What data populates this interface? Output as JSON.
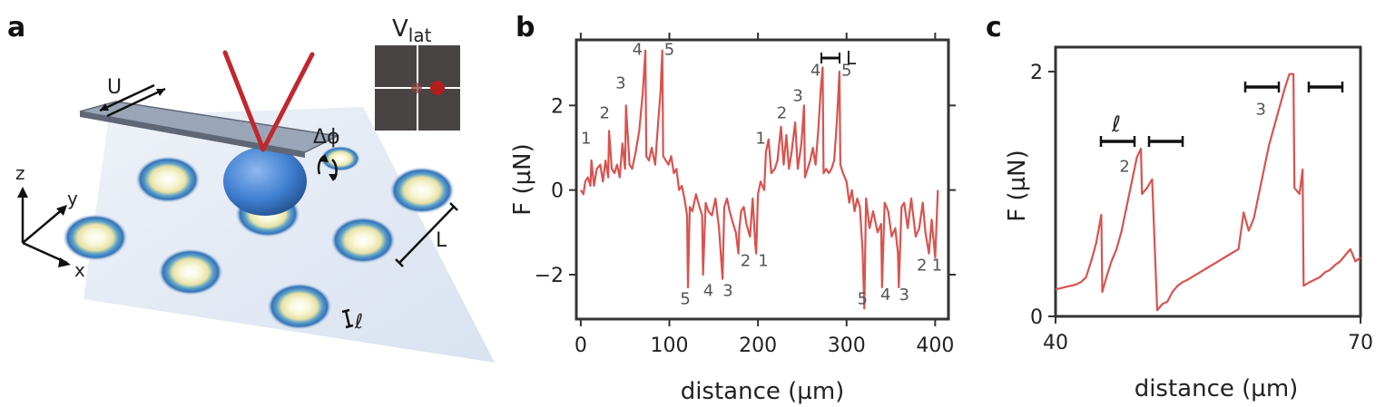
{
  "panels": {
    "a": "a",
    "b": "b",
    "c": "c"
  },
  "schematic": {
    "title_main": "V",
    "title_sub": "lat",
    "labels": {
      "U": "U",
      "dphi": "Δϕ",
      "L": "L",
      "ell": "ℓ",
      "z": "z",
      "y": "y",
      "x": "x"
    },
    "colors": {
      "tip": "#c0282d",
      "sphere": "#3f7fd0",
      "cantilever": "#8e9aae",
      "substrate": "#dfe7f2",
      "vlat_bg": "#484444",
      "vlat_dot": "#b21e1e"
    }
  },
  "chart_data": [
    {
      "panel": "b",
      "type": "line",
      "xlabel": "distance (µm)",
      "ylabel": "F (µN)",
      "xlim": [
        -5,
        415
      ],
      "ylim": [
        -3.05,
        3.55
      ],
      "xticks": [
        0,
        100,
        200,
        300,
        400
      ],
      "xtick_labels": [
        "0",
        "100",
        "200",
        "300",
        "400"
      ],
      "yticks": [
        -2,
        0,
        2
      ],
      "ytick_labels": [
        "−2",
        "0",
        "2"
      ],
      "annotation_L": "L",
      "series": [
        {
          "name": "F",
          "color": "#d9534f",
          "x": [
            0,
            3,
            5,
            8,
            11,
            12,
            15,
            18,
            22,
            25,
            28,
            31,
            32,
            35,
            38,
            41,
            44,
            47,
            50,
            51,
            55,
            58,
            62,
            66,
            70,
            73,
            74,
            77,
            80,
            84,
            87,
            90,
            92,
            93,
            96,
            99,
            102,
            105,
            108,
            111,
            114,
            117,
            120,
            121,
            123,
            126,
            130,
            134,
            137,
            138,
            141,
            144,
            148,
            152,
            156,
            159,
            160,
            162,
            165,
            168,
            172,
            175,
            178,
            179,
            181,
            184,
            187,
            191,
            194,
            197,
            198,
            200,
            203,
            207,
            209,
            212,
            215,
            219,
            222,
            226,
            229,
            232,
            235,
            238,
            242,
            245,
            249,
            252,
            253,
            256,
            259,
            262,
            265,
            268,
            271,
            273,
            274,
            277,
            280,
            283,
            286,
            289,
            292,
            293,
            296,
            300,
            303,
            306,
            309,
            312,
            315,
            318,
            320,
            322,
            326,
            330,
            335,
            339,
            340,
            343,
            347,
            351,
            355,
            358,
            359,
            362,
            365,
            369,
            373,
            378,
            382,
            386,
            389,
            393,
            396,
            400,
            403
          ],
          "y": [
            0.0,
            -0.1,
            0.2,
            0.3,
            0.1,
            0.7,
            0.1,
            0.5,
            0.6,
            0.2,
            0.7,
            0.3,
            1.4,
            0.5,
            0.4,
            0.6,
            0.3,
            1.1,
            0.5,
            2.0,
            0.6,
            0.5,
            0.9,
            1.4,
            2.3,
            3.3,
            0.8,
            0.7,
            1.0,
            0.6,
            1.5,
            2.3,
            3.3,
            0.8,
            0.7,
            0.6,
            0.8,
            0.4,
            0.5,
            0.0,
            0.1,
            -0.2,
            -0.6,
            -2.3,
            -0.4,
            -0.5,
            -0.1,
            -0.4,
            -0.6,
            -2.0,
            -0.3,
            -0.5,
            -0.6,
            -0.2,
            -0.9,
            -1.8,
            -2.1,
            -0.4,
            -0.2,
            -0.5,
            -0.8,
            -1.0,
            -1.5,
            -0.9,
            -0.5,
            -0.4,
            -0.8,
            -1.1,
            -0.2,
            -1.3,
            -1.5,
            -0.1,
            0.2,
            0.0,
            0.9,
            1.2,
            0.4,
            0.5,
            0.7,
            1.5,
            0.6,
            1.3,
            0.5,
            0.9,
            1.6,
            0.5,
            1.1,
            2.0,
            0.3,
            0.5,
            0.7,
            1.0,
            0.6,
            1.4,
            2.4,
            2.9,
            0.4,
            0.5,
            0.4,
            0.5,
            0.7,
            1.6,
            2.8,
            0.6,
            0.4,
            0.2,
            -0.3,
            0.0,
            -0.5,
            -0.2,
            -0.4,
            -1.4,
            -2.8,
            -0.2,
            -0.9,
            -0.5,
            -1.0,
            -0.8,
            -2.3,
            -0.3,
            -0.5,
            -1.1,
            -0.9,
            -1.5,
            -2.3,
            -0.4,
            -0.3,
            -0.9,
            -0.2,
            -1.1,
            -0.9,
            -0.3,
            -1.0,
            -1.5,
            -0.7,
            -1.6,
            0.0
          ]
        }
      ],
      "peak_labels": [
        {
          "text": "1",
          "x": 6,
          "y": 1.1
        },
        {
          "text": "2",
          "x": 27,
          "y": 1.7
        },
        {
          "text": "3",
          "x": 45,
          "y": 2.4
        },
        {
          "text": "4",
          "x": 64,
          "y": 3.2
        },
        {
          "text": "5",
          "x": 100,
          "y": 3.2
        },
        {
          "text": "5",
          "x": 118,
          "y": -2.7
        },
        {
          "text": "4",
          "x": 144,
          "y": -2.5
        },
        {
          "text": "3",
          "x": 166,
          "y": -2.5
        },
        {
          "text": "2",
          "x": 186,
          "y": -1.8
        },
        {
          "text": "1",
          "x": 206,
          "y": -1.8
        },
        {
          "text": "1",
          "x": 203,
          "y": 1.1
        },
        {
          "text": "2",
          "x": 227,
          "y": 1.7
        },
        {
          "text": "3",
          "x": 245,
          "y": 2.1
        },
        {
          "text": "4",
          "x": 265,
          "y": 2.7
        },
        {
          "text": "5",
          "x": 300,
          "y": 2.7
        },
        {
          "text": "5",
          "x": 318,
          "y": -2.7
        },
        {
          "text": "4",
          "x": 344,
          "y": -2.6
        },
        {
          "text": "3",
          "x": 365,
          "y": -2.6
        },
        {
          "text": "2",
          "x": 385,
          "y": -1.9
        },
        {
          "text": "1",
          "x": 402,
          "y": -1.9
        }
      ]
    },
    {
      "panel": "c",
      "type": "line",
      "xlabel": "distance (µm)",
      "ylabel": "F (µN)",
      "xlim": [
        40,
        70
      ],
      "ylim": [
        0,
        2.2
      ],
      "xticks": [
        40,
        70
      ],
      "xtick_labels": [
        "40",
        "70"
      ],
      "yticks": [
        0,
        2
      ],
      "ytick_labels": [
        "0",
        "2"
      ],
      "annotation_ell": "ℓ",
      "series": [
        {
          "name": "F",
          "color": "#d9534f",
          "x": [
            40.0,
            41.0,
            42.0,
            42.5,
            43.0,
            43.5,
            44.0,
            44.5,
            44.6,
            45.0,
            45.5,
            46.0,
            46.5,
            47.0,
            47.5,
            48.0,
            48.4,
            48.5,
            49.0,
            49.5,
            50.0,
            50.5,
            51.0,
            51.5,
            52.0,
            52.5,
            53.0,
            54.0,
            55.0,
            56.0,
            57.0,
            58.0,
            58.5,
            59.0,
            59.5,
            60.0,
            60.5,
            61.0,
            61.5,
            62.0,
            62.5,
            63.0,
            63.4,
            63.5,
            64.0,
            64.3,
            64.4,
            65.0,
            65.5,
            66.0,
            66.5,
            67.0,
            67.5,
            68.0,
            68.5,
            69.0,
            69.5,
            70.0
          ],
          "y": [
            0.22,
            0.24,
            0.26,
            0.28,
            0.32,
            0.45,
            0.6,
            0.83,
            0.2,
            0.32,
            0.45,
            0.55,
            0.7,
            0.9,
            1.1,
            1.3,
            1.37,
            1.0,
            1.05,
            1.12,
            0.05,
            0.1,
            0.12,
            0.2,
            0.25,
            0.28,
            0.3,
            0.35,
            0.4,
            0.45,
            0.5,
            0.55,
            0.85,
            0.7,
            0.8,
            1.0,
            1.2,
            1.4,
            1.55,
            1.7,
            1.85,
            1.98,
            1.98,
            1.05,
            1.0,
            1.2,
            0.25,
            0.28,
            0.3,
            0.32,
            0.36,
            0.38,
            0.42,
            0.45,
            0.5,
            0.55,
            0.45,
            0.48
          ]
        }
      ],
      "peak_labels": [
        {
          "text": "2",
          "x": 46.8,
          "y": 1.18
        },
        {
          "text": "3",
          "x": 60.2,
          "y": 1.65
        }
      ]
    }
  ]
}
